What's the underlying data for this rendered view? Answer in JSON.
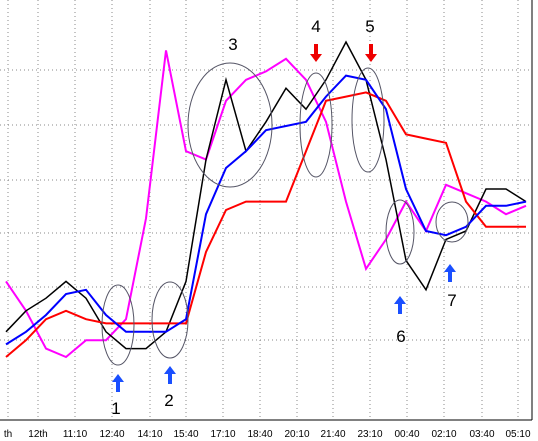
{
  "chart_data": {
    "type": "line",
    "x": [
      0,
      1,
      2,
      3,
      4,
      5,
      6,
      7,
      8,
      9,
      10,
      11,
      12,
      13,
      14,
      15,
      16,
      17,
      18,
      19,
      20,
      21,
      22,
      23,
      24,
      25,
      26
    ],
    "xlim": [
      0,
      26.5
    ],
    "ylim": [
      0,
      100
    ],
    "x_labels": [
      "th",
      "12th",
      "11:10",
      "12:40",
      "14:10",
      "15:40",
      "17:10",
      "18:40",
      "20:10",
      "21:40",
      "23:10",
      "00:40",
      "02:10",
      "03:40",
      "05:10"
    ],
    "annotations": [
      "1",
      "2",
      "3",
      "4",
      "5",
      "6",
      "7"
    ],
    "series": [
      {
        "color": "#ff00ff",
        "values": [
          33,
          26,
          17,
          15,
          19,
          19,
          24,
          48,
          88,
          64,
          62,
          76,
          81,
          83,
          86,
          81,
          71,
          52,
          36,
          43,
          52,
          45,
          56,
          54,
          52,
          49,
          51
        ]
      },
      {
        "color": "#000000",
        "values": [
          21,
          26,
          29,
          33,
          29,
          21,
          17,
          17,
          21,
          33,
          62,
          81,
          64,
          71,
          79,
          74,
          81,
          90,
          81,
          62,
          38,
          31,
          43,
          45,
          55,
          55,
          52
        ]
      },
      {
        "color": "#ff0000",
        "values": [
          15,
          19,
          24,
          26,
          24,
          23,
          23,
          23,
          23,
          23,
          40,
          50,
          52,
          52,
          52,
          64,
          76,
          77,
          78,
          76,
          68,
          67,
          66,
          52,
          46,
          46,
          46
        ]
      },
      {
        "color": "#0000ff",
        "values": [
          18,
          21,
          25,
          30,
          31,
          25,
          21,
          21,
          21,
          24,
          49,
          60,
          64,
          69,
          70,
          71,
          77,
          82,
          81,
          74,
          55,
          45,
          44,
          46,
          51,
          51,
          52
        ]
      }
    ]
  }
}
